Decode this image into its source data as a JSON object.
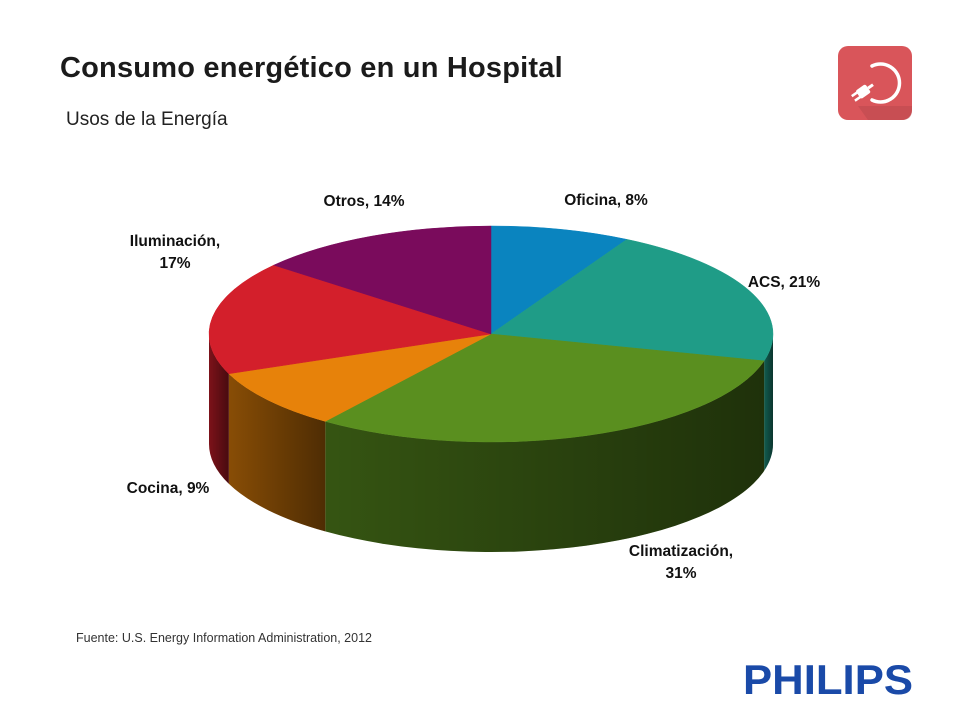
{
  "header": {
    "title": "Consumo energético en un Hospital",
    "subtitle": "Usos de la Energía"
  },
  "icons": {
    "app_icon": "plug-refresh-icon",
    "app_icon_color": "#d9555a"
  },
  "chart_data": {
    "type": "pie",
    "style": "3d",
    "slices": [
      {
        "label": "Oficina",
        "value": 8,
        "color": "#0a84bf",
        "label_text": "Oficina, 8%"
      },
      {
        "label": "ACS",
        "value": 21,
        "color": "#1f9c87",
        "label_text": "ACS, 21%"
      },
      {
        "label": "Climatización",
        "value": 31,
        "color": "#5a8f1f",
        "label_text": "Climatización, 31%"
      },
      {
        "label": "Cocina",
        "value": 9,
        "color": "#e7820a",
        "label_text": "Cocina, 9%"
      },
      {
        "label": "Iluminación",
        "value": 17,
        "color": "#d31f2b",
        "label_text": "Iluminación, 17%"
      },
      {
        "label": "Otros",
        "value": 14,
        "color": "#7a0b5c",
        "label_text": "Otros, 14%"
      }
    ]
  },
  "footer": {
    "source": "Fuente: U.S. Energy Information Administration, 2012",
    "brand": "PHILIPS",
    "brand_color": "#1a4aa8"
  }
}
